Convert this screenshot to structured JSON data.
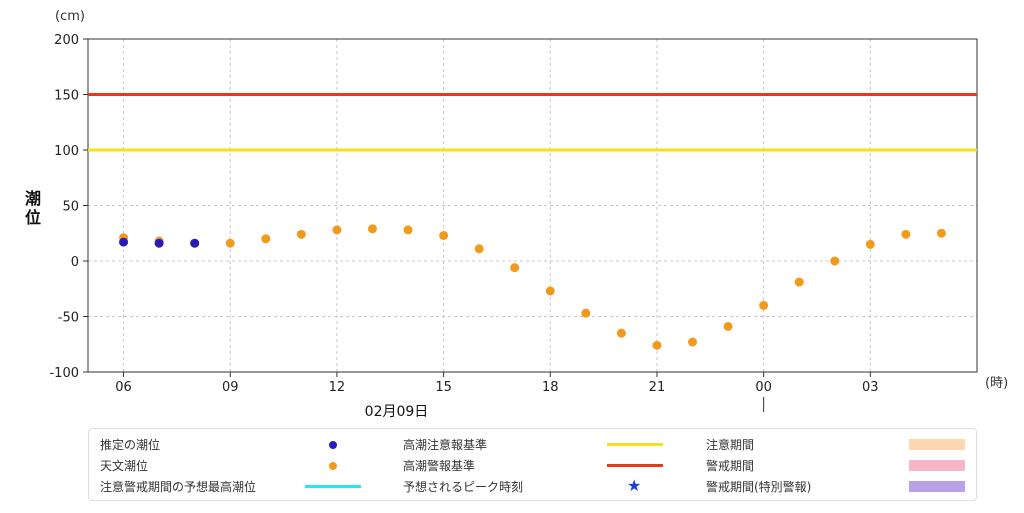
{
  "chart_data": {
    "type": "scatter",
    "y_unit": "(cm)",
    "x_unit": "(時)",
    "ylabel": "潮位",
    "ylim": [
      -100,
      200
    ],
    "yticks": [
      200,
      150,
      100,
      50,
      0,
      -50,
      -100
    ],
    "grid": true,
    "x_hours": [
      6,
      7,
      8,
      9,
      10,
      11,
      12,
      13,
      14,
      15,
      16,
      17,
      18,
      19,
      20,
      21,
      22,
      23,
      24,
      25,
      26,
      27,
      28,
      29
    ],
    "xticks": [
      {
        "label": "06",
        "hour": 6
      },
      {
        "label": "09",
        "hour": 9
      },
      {
        "label": "12",
        "hour": 12
      },
      {
        "label": "15",
        "hour": 15
      },
      {
        "label": "18",
        "hour": 18
      },
      {
        "label": "21",
        "hour": 21
      },
      {
        "label": "00",
        "hour": 24
      },
      {
        "label": "03",
        "hour": 27
      }
    ],
    "date_label": "02月09日",
    "date_label_hour": 13,
    "day_boundary_hour": 24,
    "series": [
      {
        "name": "天文潮位",
        "color": "#f39a1e",
        "points": [
          {
            "hour": 6,
            "value": 21
          },
          {
            "hour": 7,
            "value": 18
          },
          {
            "hour": 8,
            "value": 16
          },
          {
            "hour": 9,
            "value": 16
          },
          {
            "hour": 10,
            "value": 20
          },
          {
            "hour": 11,
            "value": 24
          },
          {
            "hour": 12,
            "value": 28
          },
          {
            "hour": 13,
            "value": 29
          },
          {
            "hour": 14,
            "value": 28
          },
          {
            "hour": 15,
            "value": 23
          },
          {
            "hour": 16,
            "value": 11
          },
          {
            "hour": 17,
            "value": -6
          },
          {
            "hour": 18,
            "value": -27
          },
          {
            "hour": 19,
            "value": -47
          },
          {
            "hour": 20,
            "value": -65
          },
          {
            "hour": 21,
            "value": -76
          },
          {
            "hour": 22,
            "value": -73
          },
          {
            "hour": 23,
            "value": -59
          },
          {
            "hour": 24,
            "value": -40
          },
          {
            "hour": 25,
            "value": -19
          },
          {
            "hour": 26,
            "value": 0
          },
          {
            "hour": 27,
            "value": 15
          },
          {
            "hour": 28,
            "value": 24
          },
          {
            "hour": 29,
            "value": 25
          }
        ]
      },
      {
        "name": "推定の潮位",
        "color": "#2a1bb8",
        "points": [
          {
            "hour": 6,
            "value": 17
          },
          {
            "hour": 7,
            "value": 16
          },
          {
            "hour": 8,
            "value": 16
          }
        ]
      }
    ],
    "reference_lines": [
      {
        "name": "警報基準",
        "value": 150,
        "color": "#e8391d"
      },
      {
        "name": "注意報基準",
        "value": 100,
        "color": "#f2e21b"
      }
    ]
  },
  "legend": [
    {
      "label": "推定の潮位",
      "symbol": "dot",
      "color": "#2a1bb8"
    },
    {
      "label": "天文潮位",
      "symbol": "dot",
      "color": "#f39a1e"
    },
    {
      "label": "注意警戒期間の予想最高潮位",
      "symbol": "line",
      "color": "#27e5f2"
    },
    {
      "label": "高潮注意報基準",
      "symbol": "line",
      "color": "#f2e21b"
    },
    {
      "label": "高潮警報基準",
      "symbol": "line",
      "color": "#e8391d"
    },
    {
      "label": "予想されるピーク時刻",
      "symbol": "star",
      "color": "#1a3fd6"
    },
    {
      "label": "注意期間",
      "symbol": "rect",
      "color": "#fbd8b0"
    },
    {
      "label": "警戒期間",
      "symbol": "rect",
      "color": "#f7b5c8"
    },
    {
      "label": "警戒期間(特別警報)",
      "symbol": "rect",
      "color": "#b9a1e8"
    }
  ]
}
